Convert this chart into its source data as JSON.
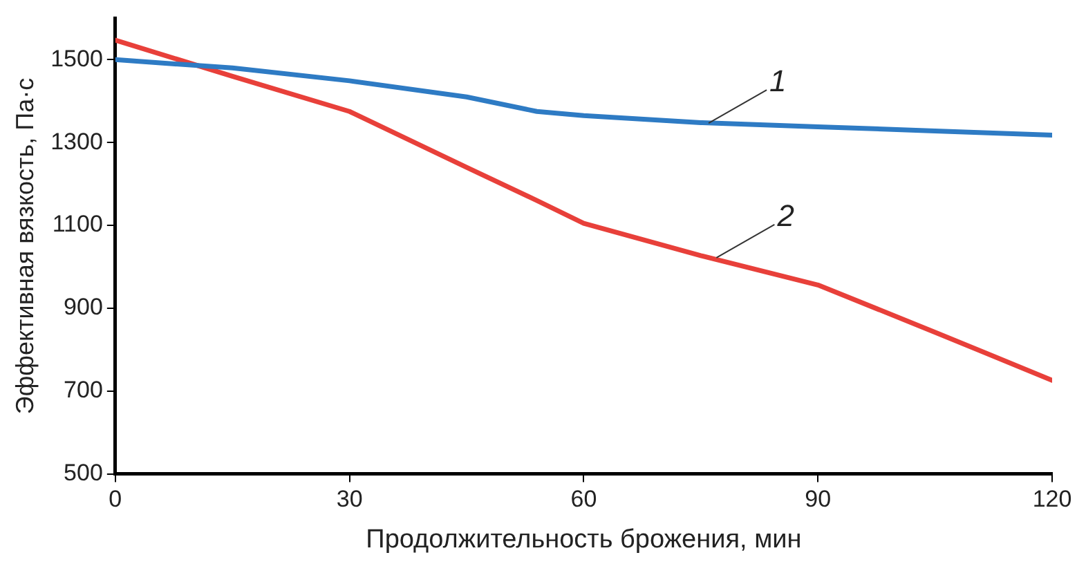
{
  "chart_data": {
    "type": "line",
    "xlabel": "Продолжительность брожения, мин",
    "ylabel": "Эффективная вязкость, Па·с",
    "x": [
      0,
      15,
      30,
      45,
      54,
      60,
      75,
      90,
      105,
      120
    ],
    "series": [
      {
        "color": "#2e7bc4",
        "values": [
          1500,
          1480,
          1449,
          1410,
          1375,
          1365,
          1348,
          1338,
          1328,
          1318
        ]
      },
      {
        "color": "#e8403a",
        "values": [
          1547,
          1460,
          1375,
          1240,
          1160,
          1105,
          1027,
          956,
          842,
          726
        ]
      }
    ],
    "xlim": [
      0,
      120
    ],
    "xticks": [
      0,
      30,
      60,
      90,
      120
    ],
    "ylim": [
      500,
      1600
    ],
    "yticks": [
      500,
      700,
      900,
      1100,
      1300,
      1500
    ],
    "annotations": [
      {
        "text": "1",
        "x": 76,
        "y": 1347
      },
      {
        "text": "2",
        "x": 77,
        "y": 1022
      }
    ],
    "grid": false,
    "legend": false,
    "marker": "none",
    "line_style": "solid"
  }
}
